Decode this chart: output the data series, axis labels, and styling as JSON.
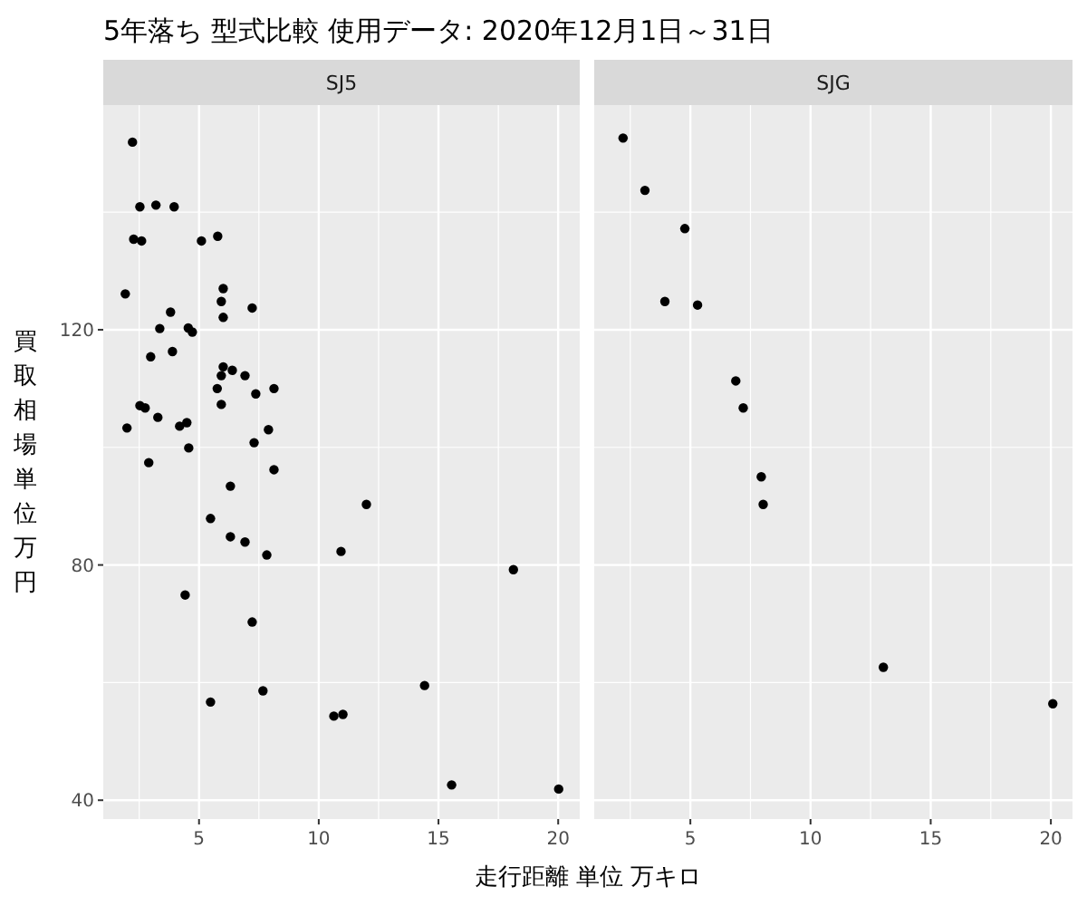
{
  "chart_data": [
    {
      "type": "scatter",
      "title": "5年落ち 型式比較 使用データ: 2020年12月1日～31日",
      "subtitle": "SJ5",
      "xlabel": "走行距離 単位 万キロ",
      "ylabel": "買取相場単位万円",
      "color": "#000000",
      "grid": true,
      "marker": "circle",
      "xlim": [
        1.0,
        20.9
      ],
      "ylim": [
        36.8,
        158.2
      ],
      "xticks": [
        5,
        10,
        15,
        20
      ],
      "yticks": [
        40,
        80,
        120
      ],
      "x": [
        2.22,
        2.53,
        3.2,
        3.96,
        2.27,
        2.6,
        5.1,
        5.78,
        1.92,
        6.01,
        5.93,
        7.22,
        6.01,
        3.81,
        3.36,
        4.55,
        4.72,
        2.98,
        3.89,
        6.01,
        6.39,
        5.93,
        6.92,
        5.76,
        8.13,
        7.37,
        5.93,
        2.53,
        2.75,
        3.28,
        1.99,
        4.19,
        4.49,
        7.9,
        4.57,
        7.3,
        2.9,
        8.13,
        6.31,
        11.99,
        5.48,
        6.31,
        6.92,
        7.83,
        10.93,
        18.13,
        4.42,
        7.22,
        14.42,
        5.48,
        7.67,
        10.63,
        11.01,
        15.55,
        20.02
      ],
      "values": [
        151.9,
        140.9,
        141.2,
        140.9,
        135.4,
        135.1,
        135.1,
        135.9,
        126.1,
        127.0,
        124.8,
        123.7,
        122.1,
        123.0,
        120.2,
        120.3,
        119.6,
        115.4,
        116.3,
        113.7,
        113.1,
        112.2,
        112.2,
        110.0,
        110.0,
        109.1,
        107.3,
        107.1,
        106.7,
        105.1,
        103.3,
        103.6,
        104.2,
        103.0,
        99.9,
        100.8,
        97.4,
        96.2,
        93.4,
        90.3,
        87.9,
        84.8,
        83.9,
        81.7,
        82.3,
        79.2,
        74.9,
        70.3,
        59.5,
        56.7,
        58.6,
        54.3,
        54.6,
        42.6,
        41.9
      ]
    },
    {
      "type": "scatter",
      "subtitle": "SJG",
      "color": "#000000",
      "grid": true,
      "marker": "circle",
      "tick_labels": "x",
      "xlim": [
        1.0,
        20.9
      ],
      "ylim": [
        36.8,
        158.2
      ],
      "xticks": [
        5,
        10,
        15,
        20
      ],
      "yticks": [
        40,
        80,
        120
      ],
      "x": [
        2.2,
        3.11,
        4.77,
        3.94,
        5.3,
        6.89,
        7.2,
        7.95,
        8.03,
        13.03,
        20.08
      ],
      "values": [
        152.6,
        143.7,
        137.2,
        124.8,
        124.2,
        111.3,
        106.7,
        95.0,
        90.3,
        62.6,
        56.4
      ]
    }
  ]
}
